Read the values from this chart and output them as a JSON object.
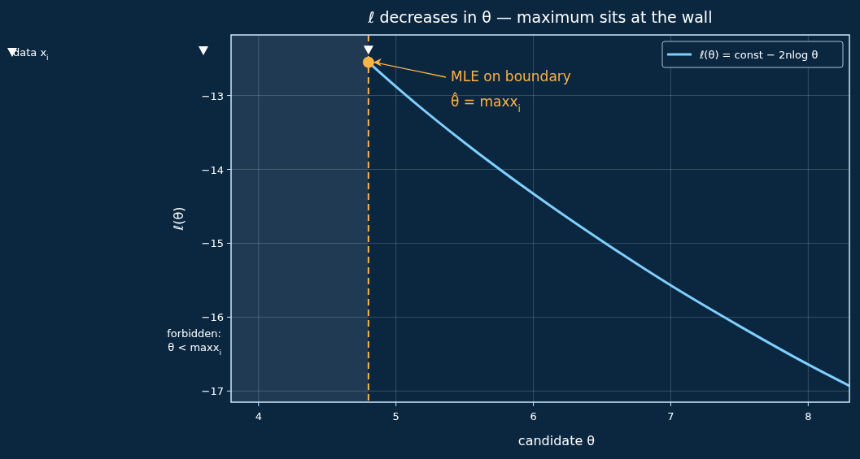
{
  "chart_data": {
    "type": "line",
    "title": "ℓ decreases in θ — maximum sits at the wall",
    "xlabel": "candidate θ",
    "ylabel": "ℓ(θ)",
    "xlim": [
      3.8,
      8.3
    ],
    "ylim": [
      -17.15,
      -12.18
    ],
    "xticks": [
      4,
      5,
      6,
      7,
      8
    ],
    "yticks": [
      -17,
      -16,
      -15,
      -14,
      -13
    ],
    "grid": true,
    "legend": "top right",
    "series": [
      {
        "name": "ℓ(θ) = const − 2nlog θ",
        "color": "#7fd0ff",
        "x": [
          4.8,
          5,
          5.5,
          6,
          6.5,
          7,
          7.5,
          8,
          8.3
        ],
        "values": [
          -12.55,
          -12.88,
          -13.64,
          -14.33,
          -14.97,
          -15.57,
          -16.12,
          -16.64,
          -16.93
        ]
      },
      {
        "type": "scatter",
        "color": "#ffffff",
        "marker": "triangle",
        "x": [
          4.8
        ],
        "values": [
          -12.38
        ]
      },
      {
        "type": "scatter",
        "color": "#ffb347",
        "marker": "circle",
        "x": [
          4.8
        ],
        "values": [
          -12.55
        ]
      }
    ],
    "ref_lines": [
      {
        "axis": "x",
        "value": 4.8,
        "color": "#ffb347",
        "line_style": "dashed"
      }
    ],
    "bands": [
      {
        "axis": "x",
        "from": 3.8,
        "to": 4.8,
        "label": "forbidden:\nθ < maxx$_{i}$",
        "color": "#1f3a52"
      }
    ],
    "annotations": [
      {
        "text": "MLE on boundary\nθ̂ = maxx$_{i}$",
        "x": 4.8,
        "y": -12.55
      },
      "data x$_{i}$"
    ]
  }
}
